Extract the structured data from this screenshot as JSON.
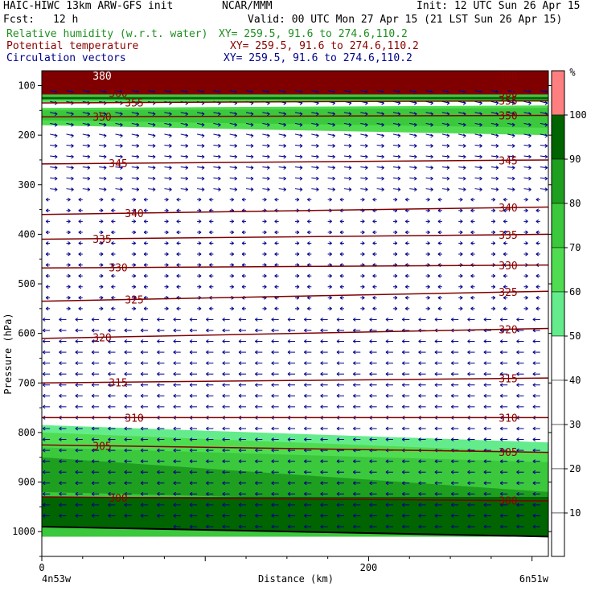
{
  "header": {
    "title": "HAIC-HIWC 13km ARW-GFS init",
    "org": "NCAR/MMM",
    "init": "Init: 12 UTC Sun 26 Apr 15",
    "fcst_label": "Fcst:",
    "fcst_value": "12 h",
    "valid": "Valid: 00 UTC Mon 27 Apr 15 (21 LST Sun 26 Apr 15)",
    "fields": [
      {
        "name": "Relative humidity (w.r.t. water)",
        "xy": "XY= 259.5, 91.6 to 274.6,110.2",
        "color": "#1f8f1f"
      },
      {
        "name": "Potential temperature",
        "xy": "XY= 259.5, 91.6 to 274.6,110.2",
        "color": "#8b0000"
      },
      {
        "name": "Circulation vectors",
        "xy": "XY= 259.5, 91.6 to 274.6,110.2",
        "color": "#00008b"
      }
    ]
  },
  "axes": {
    "ylabel": "Pressure (hPa)",
    "xlabel": "Distance (km)",
    "x_start_label": "4n53w",
    "x_end_label": "6n51w",
    "y_ticks": [
      "100",
      "200",
      "300",
      "400",
      "500",
      "600",
      "700",
      "800",
      "900",
      "1000"
    ],
    "x_ticks": [
      "0",
      "200"
    ]
  },
  "colorbar": {
    "unit": "%",
    "labels": [
      "100",
      "90",
      "80",
      "70",
      "60",
      "50",
      "40",
      "30",
      "20",
      "10"
    ],
    "colors": [
      "#fe7f7f",
      "#006400",
      "#1f9f1f",
      "#3cc83c",
      "#50dc50",
      "#64ec8c",
      "#ffffff",
      "#ffffff",
      "#ffffff",
      "#ffffff",
      "#ffffff"
    ]
  },
  "chart_data": {
    "type": "heatmap",
    "x_range_km": [
      0,
      310
    ],
    "y_range_hPa": [
      70,
      1050
    ],
    "x_ticks": [
      0,
      200
    ],
    "y_ticks": [
      100,
      200,
      300,
      400,
      500,
      600,
      700,
      800,
      900,
      1000
    ],
    "theta_contours": [
      {
        "label": "380",
        "p_left": 80,
        "p_right": 80
      },
      {
        "label": "360",
        "p_left": 115,
        "p_right": 115
      },
      {
        "label": "355",
        "p_left": 135,
        "p_right": 130
      },
      {
        "label": "350",
        "p_left": 163,
        "p_right": 160
      },
      {
        "label": "345",
        "p_left": 258,
        "p_right": 250
      },
      {
        "label": "340",
        "p_left": 360,
        "p_right": 345
      },
      {
        "label": "335",
        "p_left": 410,
        "p_right": 400
      },
      {
        "label": "330",
        "p_left": 468,
        "p_right": 462
      },
      {
        "label": "325",
        "p_left": 535,
        "p_right": 515
      },
      {
        "label": "320",
        "p_left": 610,
        "p_right": 590
      },
      {
        "label": "315",
        "p_left": 700,
        "p_right": 690
      },
      {
        "label": "310",
        "p_left": 770,
        "p_right": 770
      },
      {
        "label": "305",
        "p_left": 825,
        "p_right": 840
      },
      {
        "label": "300",
        "p_left": 930,
        "p_right": 938
      }
    ],
    "surface_pressure": {
      "p_left": 990,
      "p_right": 1010
    }
  }
}
